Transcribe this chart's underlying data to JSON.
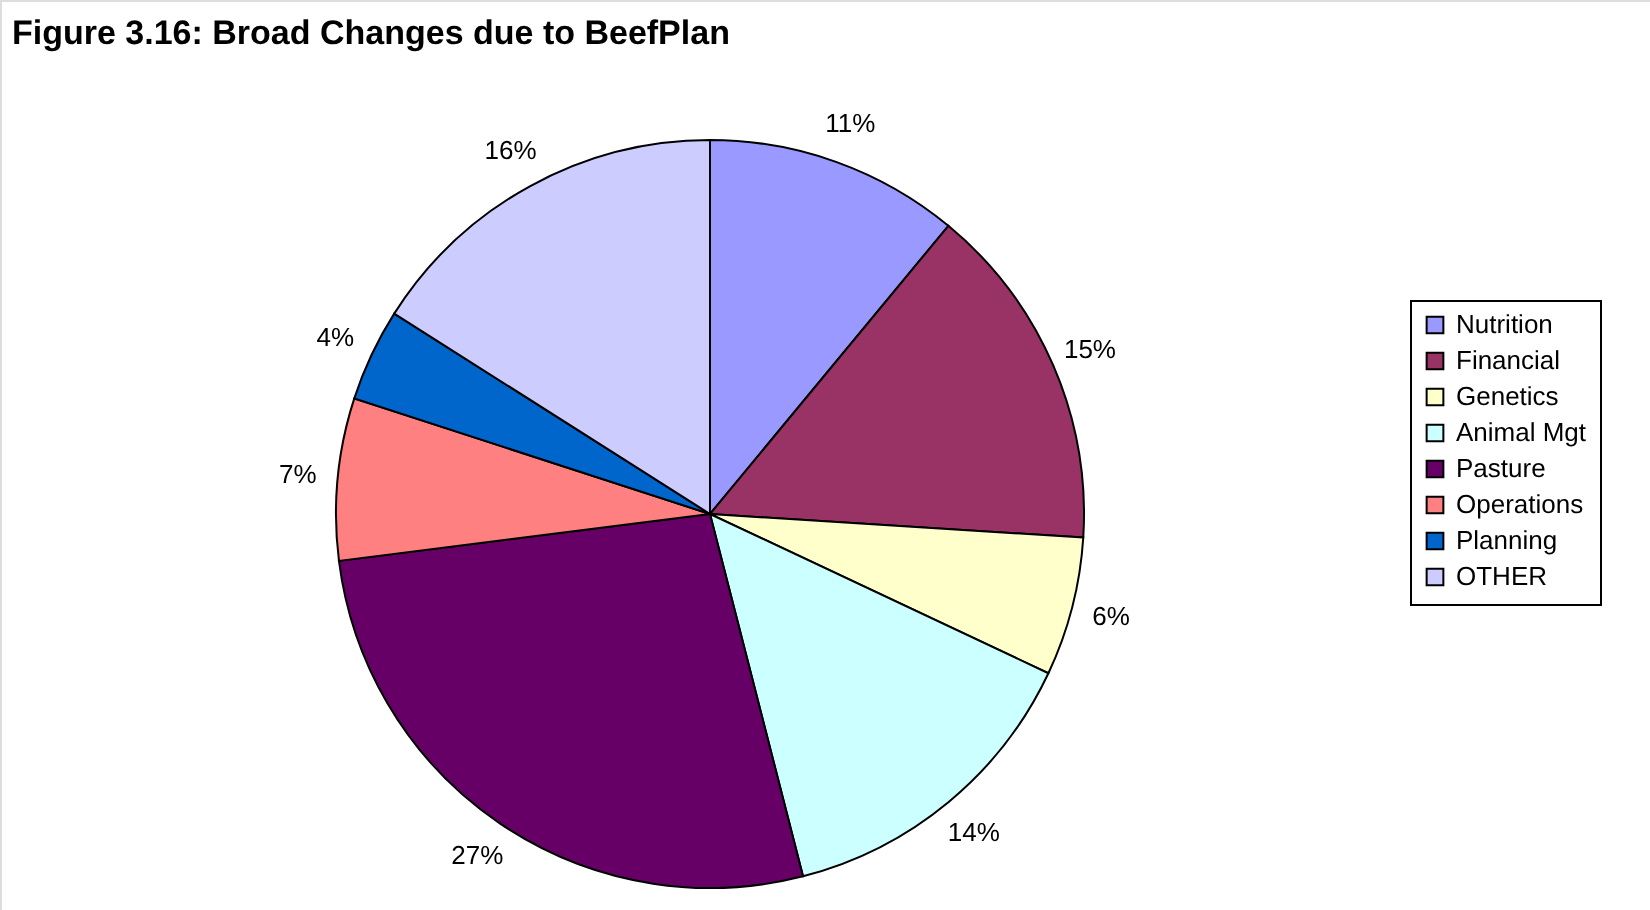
{
  "chart_data": {
    "type": "pie",
    "title": "Figure 3.16:  Broad Changes due to BeefPlan",
    "categories": [
      "Nutrition",
      "Financial",
      "Genetics",
      "Animal Mgt",
      "Pasture",
      "Operations",
      "Planning",
      "OTHER"
    ],
    "values": [
      11,
      15,
      6,
      14,
      27,
      7,
      4,
      16
    ],
    "value_labels": [
      "11%",
      "15%",
      "6%",
      "14%",
      "27%",
      "7%",
      "4%",
      "16%"
    ],
    "colors": [
      "#9999ff",
      "#993366",
      "#ffffcc",
      "#ccffff",
      "#660066",
      "#ff8080",
      "#0066cc",
      "#ccccff"
    ],
    "legend": "right"
  }
}
